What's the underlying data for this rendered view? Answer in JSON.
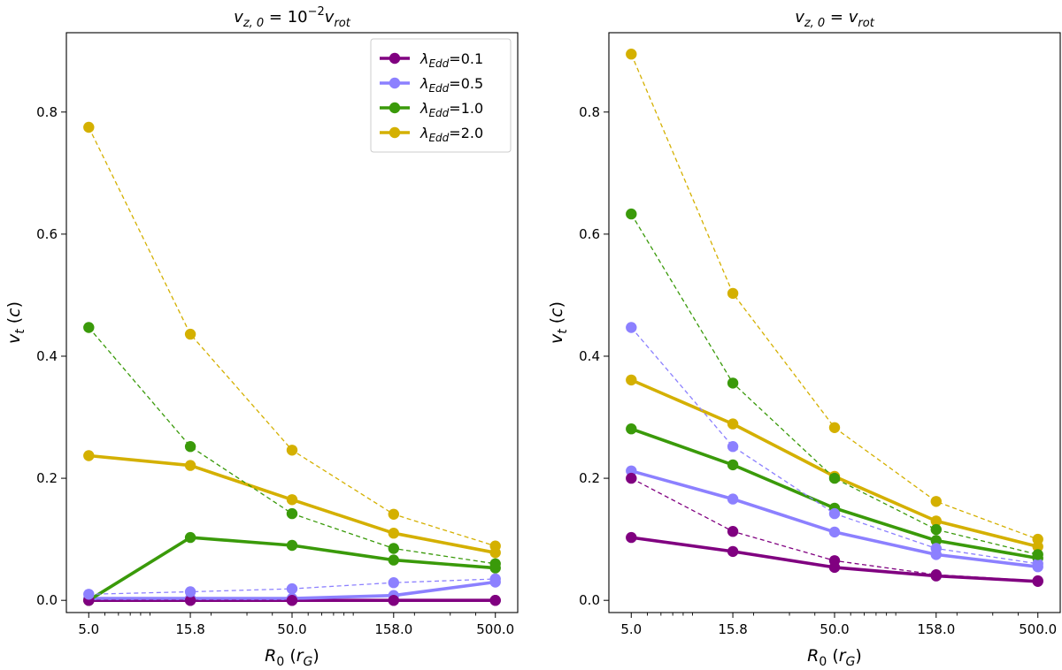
{
  "chart_data": [
    {
      "type": "line",
      "title": "$v_{z,0}=10^{-2} v_{rot}$",
      "title_parts": {
        "base": "v",
        "sub": "z, 0",
        "mid": " = 10",
        "sup": "−2",
        "tail_base": "v",
        "tail_sub": "rot"
      },
      "xlabel": "R0 (rG)",
      "xlabel_parts": {
        "base": "R",
        "sub": "0",
        "mid": " (",
        "unit": "r",
        "unit_sub": "G",
        "end": ")"
      },
      "ylabel": "vt (c)",
      "ylabel_parts": {
        "base": "v",
        "sub": "t",
        "rest": " (",
        "unit": "c",
        "end": ")"
      },
      "x_scale": "log",
      "x": [
        5.0,
        15.8,
        50.0,
        158.0,
        500.0
      ],
      "xtick_labels": [
        "5.0",
        "15.8",
        "50.0",
        "158.0",
        "500.0"
      ],
      "ylim": [
        -0.02,
        0.93
      ],
      "yticks": [
        0.0,
        0.2,
        0.4,
        0.6,
        0.8
      ],
      "ytick_labels": [
        "0.0",
        "0.2",
        "0.4",
        "0.6",
        "0.8"
      ],
      "grid": false,
      "legend_position": "top-right",
      "series": [
        {
          "name": "λEdd=0.1",
          "label_sub": "Edd",
          "label_val": "=0.1",
          "color": "#800080",
          "style": "solid",
          "values": [
            0.0,
            0.0,
            0.0,
            0.0,
            0.0
          ]
        },
        {
          "name": "λEdd=0.5",
          "label_sub": "Edd",
          "label_val": "=0.5",
          "color": "#8c80ff",
          "style": "solid",
          "values": [
            0.003,
            0.003,
            0.003,
            0.008,
            0.03
          ]
        },
        {
          "name": "λEdd=1.0",
          "label_sub": "Edd",
          "label_val": "=1.0",
          "color": "#3a9a0a",
          "style": "solid",
          "values": [
            0.0,
            0.103,
            0.09,
            0.066,
            0.053
          ]
        },
        {
          "name": "λEdd=2.0",
          "label_sub": "Edd",
          "label_val": "=2.0",
          "color": "#d4b000",
          "style": "solid",
          "values": [
            0.237,
            0.221,
            0.165,
            0.11,
            0.078
          ]
        },
        {
          "color": "#800080",
          "style": "dashed",
          "values": [
            0.0,
            0.0,
            0.0,
            0.0,
            0.0
          ]
        },
        {
          "color": "#8c80ff",
          "style": "dashed",
          "values": [
            0.01,
            0.014,
            0.019,
            0.029,
            0.035
          ]
        },
        {
          "color": "#3a9a0a",
          "style": "dashed",
          "values": [
            0.447,
            0.252,
            0.142,
            0.085,
            0.06
          ]
        },
        {
          "color": "#d4b000",
          "style": "dashed",
          "values": [
            0.775,
            0.436,
            0.246,
            0.141,
            0.089
          ]
        }
      ]
    },
    {
      "type": "line",
      "title": "$v_{z,0}=v_{rot}$",
      "title_parts": {
        "base": "v",
        "sub": "z, 0",
        "mid": " = ",
        "sup": "",
        "tail_base": "v",
        "tail_sub": "rot"
      },
      "xlabel": "R0 (rG)",
      "xlabel_parts": {
        "base": "R",
        "sub": "0",
        "mid": " (",
        "unit": "r",
        "unit_sub": "G",
        "end": ")"
      },
      "ylabel": "vt (c)",
      "ylabel_parts": {
        "base": "v",
        "sub": "t",
        "rest": " (",
        "unit": "c",
        "end": ")"
      },
      "x_scale": "log",
      "x": [
        5.0,
        15.8,
        50.0,
        158.0,
        500.0
      ],
      "xtick_labels": [
        "5.0",
        "15.8",
        "50.0",
        "158.0",
        "500.0"
      ],
      "ylim": [
        -0.02,
        0.93
      ],
      "yticks": [
        0.0,
        0.2,
        0.4,
        0.6,
        0.8
      ],
      "ytick_labels": [
        "0.0",
        "0.2",
        "0.4",
        "0.6",
        "0.8"
      ],
      "grid": false,
      "legend_position": "none",
      "series": [
        {
          "color": "#800080",
          "style": "solid",
          "values": [
            0.103,
            0.08,
            0.054,
            0.04,
            0.031
          ]
        },
        {
          "color": "#8c80ff",
          "style": "solid",
          "values": [
            0.212,
            0.166,
            0.112,
            0.075,
            0.055
          ]
        },
        {
          "color": "#3a9a0a",
          "style": "solid",
          "values": [
            0.281,
            0.222,
            0.151,
            0.098,
            0.069
          ]
        },
        {
          "color": "#d4b000",
          "style": "solid",
          "values": [
            0.361,
            0.289,
            0.203,
            0.13,
            0.088
          ]
        },
        {
          "color": "#800080",
          "style": "dashed",
          "values": [
            0.2,
            0.113,
            0.065,
            0.042,
            0.032
          ]
        },
        {
          "color": "#8c80ff",
          "style": "dashed",
          "values": [
            0.447,
            0.252,
            0.142,
            0.085,
            0.06
          ]
        },
        {
          "color": "#3a9a0a",
          "style": "dashed",
          "values": [
            0.633,
            0.356,
            0.2,
            0.116,
            0.075
          ]
        },
        {
          "color": "#d4b000",
          "style": "dashed",
          "values": [
            0.895,
            0.503,
            0.283,
            0.162,
            0.1
          ]
        }
      ]
    }
  ]
}
